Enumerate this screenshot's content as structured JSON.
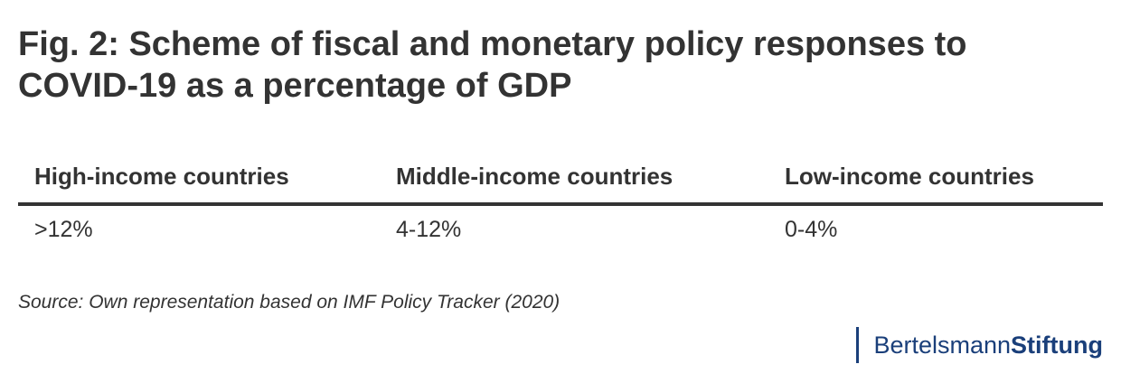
{
  "title": "Fig. 2: Scheme of fiscal and monetary policy responses to COVID-19 as a percentage of GDP",
  "table": {
    "headers": [
      "High-income countries",
      "Middle-income countries",
      "Low-income countries"
    ],
    "row": [
      ">12%",
      "4-12%",
      "0-4%"
    ]
  },
  "source": "Source: Own representation based on IMF Policy Tracker (2020)",
  "logo": {
    "part1": "Bertelsmann",
    "part2": "Stiftung",
    "color": "#1a3f7a"
  }
}
